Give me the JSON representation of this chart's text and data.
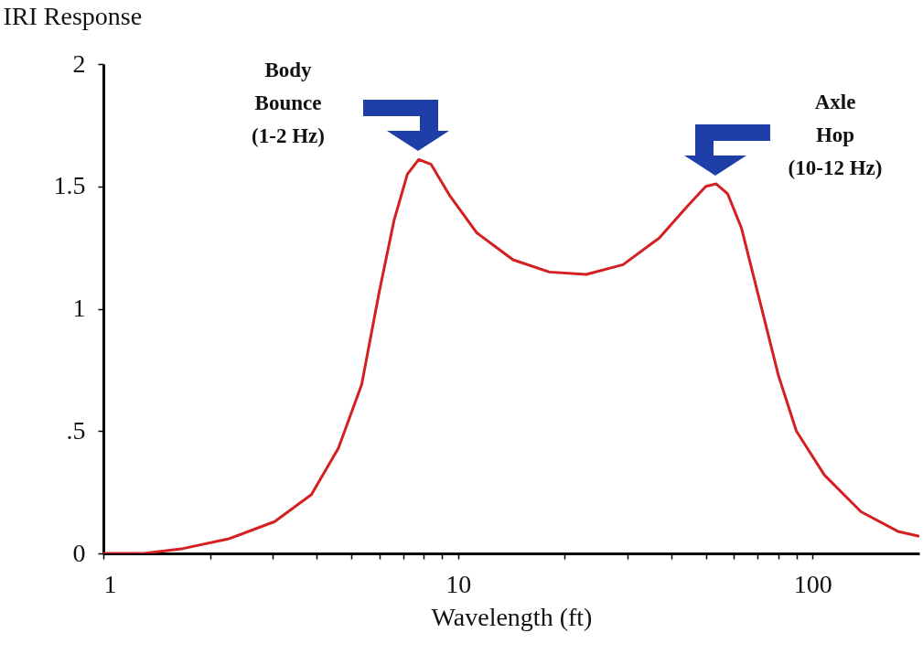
{
  "chart_data": {
    "type": "line",
    "xlabel": "Wavelength (ft)",
    "ylabel": "IRI Response",
    "log": "x",
    "color": "#d42020",
    "x": [
      1,
      1.3,
      1.68,
      2.26,
      3.04,
      3.86,
      4.6,
      5.35,
      6.0,
      6.6,
      7.2,
      7.75,
      8.4,
      9.5,
      11.3,
      14.3,
      18.1,
      23,
      29.2,
      37,
      44.4,
      50,
      53.5,
      57.6,
      63,
      71,
      80,
      90,
      108,
      137,
      174,
      200
    ],
    "values": [
      0,
      0,
      0.02,
      0.06,
      0.13,
      0.24,
      0.43,
      0.69,
      1.07,
      1.36,
      1.55,
      1.61,
      1.59,
      1.46,
      1.31,
      1.2,
      1.15,
      1.14,
      1.18,
      1.29,
      1.42,
      1.5,
      1.51,
      1.47,
      1.33,
      1.03,
      0.73,
      0.5,
      0.32,
      0.17,
      0.09,
      0.07
    ],
    "xlim": [
      1,
      200
    ],
    "ylim": [
      0,
      2
    ],
    "xticks": [
      1,
      {
        "value": 2,
        "label": null
      },
      {
        "value": 3,
        "label": null
      },
      {
        "value": 4,
        "label": null
      },
      {
        "value": 5,
        "label": null
      },
      {
        "value": 6,
        "label": null
      },
      {
        "value": 7,
        "label": null
      },
      {
        "value": 8,
        "label": null
      },
      {
        "value": 9,
        "label": null
      },
      10,
      {
        "value": 20,
        "label": null
      },
      {
        "value": 30,
        "label": null
      },
      {
        "value": 40,
        "label": null
      },
      {
        "value": 50,
        "label": null
      },
      {
        "value": 60,
        "label": null
      },
      {
        "value": 70,
        "label": null
      },
      {
        "value": 80,
        "label": null
      },
      {
        "value": 90,
        "label": null
      },
      100
    ],
    "yticks": [
      0,
      {
        "value": 0.5,
        "label": ".5"
      },
      1,
      1.5,
      2
    ],
    "annotations": [
      "Body\nBounce\n(1-2 Hz)",
      "Axle\nHop\n(10-12 Hz)"
    ]
  }
}
